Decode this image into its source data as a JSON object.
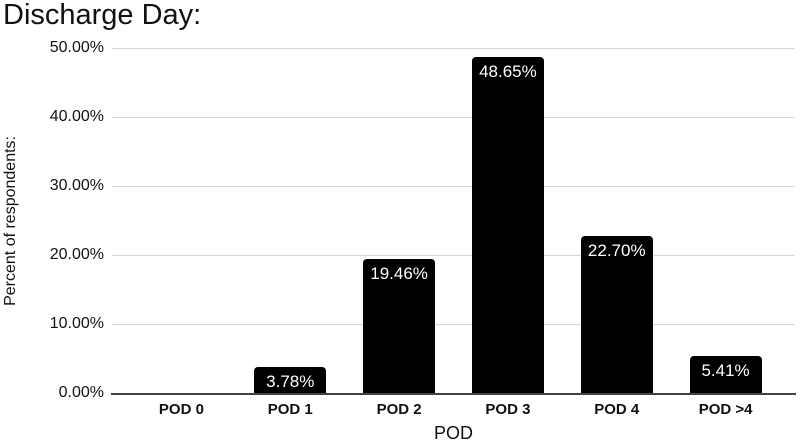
{
  "chart_data": {
    "type": "bar",
    "title": "Discharge Day:",
    "xlabel": "POD",
    "ylabel": "Percent of respondents:",
    "categories": [
      "POD 0",
      "POD 1",
      "POD 2",
      "POD 3",
      "POD 4",
      "POD >4"
    ],
    "values": [
      0,
      3.78,
      19.46,
      48.65,
      22.7,
      5.41
    ],
    "value_labels": [
      "",
      "3.78%",
      "19.46%",
      "48.65%",
      "22.70%",
      "5.41%"
    ],
    "y_ticks": [
      {
        "value": 0,
        "label": "0.00%"
      },
      {
        "value": 10,
        "label": "10.00%"
      },
      {
        "value": 20,
        "label": "20.00%"
      },
      {
        "value": 30,
        "label": "30.00%"
      },
      {
        "value": 40,
        "label": "40.00%"
      },
      {
        "value": 50,
        "label": "50.00%"
      }
    ],
    "ylim": [
      0,
      50
    ],
    "grid": "horizontal",
    "legend": "none",
    "colors": {
      "bar": "#000000",
      "bar_label": "#ffffff",
      "gridline": "#d6d6d6",
      "axis_line": "#424242",
      "text": "#111111"
    }
  }
}
